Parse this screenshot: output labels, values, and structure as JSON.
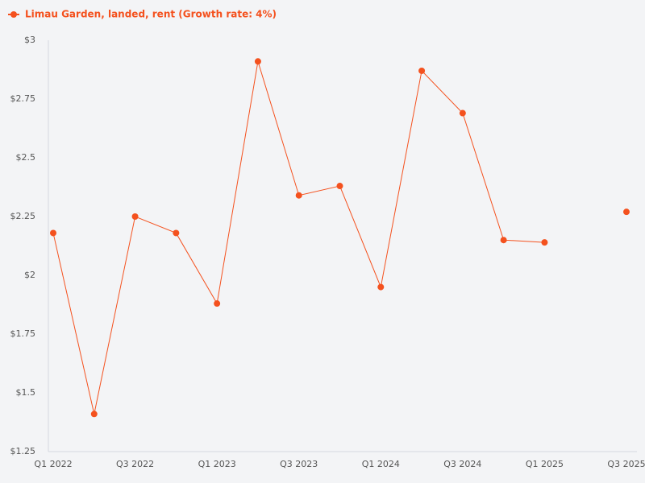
{
  "chart_data": {
    "type": "line",
    "series": [
      {
        "name": "Limau Garden, landed, rent (Growth rate: 4%)",
        "color": "#f4511e",
        "values": [
          2.18,
          1.41,
          2.25,
          2.18,
          1.88,
          2.91,
          2.34,
          2.38,
          1.95,
          2.87,
          2.69,
          2.15,
          2.14,
          null,
          2.27
        ]
      }
    ],
    "categories": [
      "Q1 2022",
      null,
      "Q3 2022",
      null,
      "Q1 2023",
      null,
      "Q3 2023",
      null,
      "Q1 2024",
      null,
      "Q3 2024",
      null,
      "Q1 2025",
      null,
      "Q3 2025"
    ],
    "ylim": [
      1.25,
      3
    ],
    "yticks": [
      {
        "value": 1.25,
        "label": "$1.25"
      },
      {
        "value": 1.5,
        "label": "$1.5"
      },
      {
        "value": 1.75,
        "label": "$1.75"
      },
      {
        "value": 2,
        "label": "$2"
      },
      {
        "value": 2.25,
        "label": "$2.25"
      },
      {
        "value": 2.5,
        "label": "$2.5"
      },
      {
        "value": 2.75,
        "label": "$2.75"
      },
      {
        "value": 3,
        "label": "$3"
      }
    ],
    "grid": false,
    "legend": "top-left"
  }
}
